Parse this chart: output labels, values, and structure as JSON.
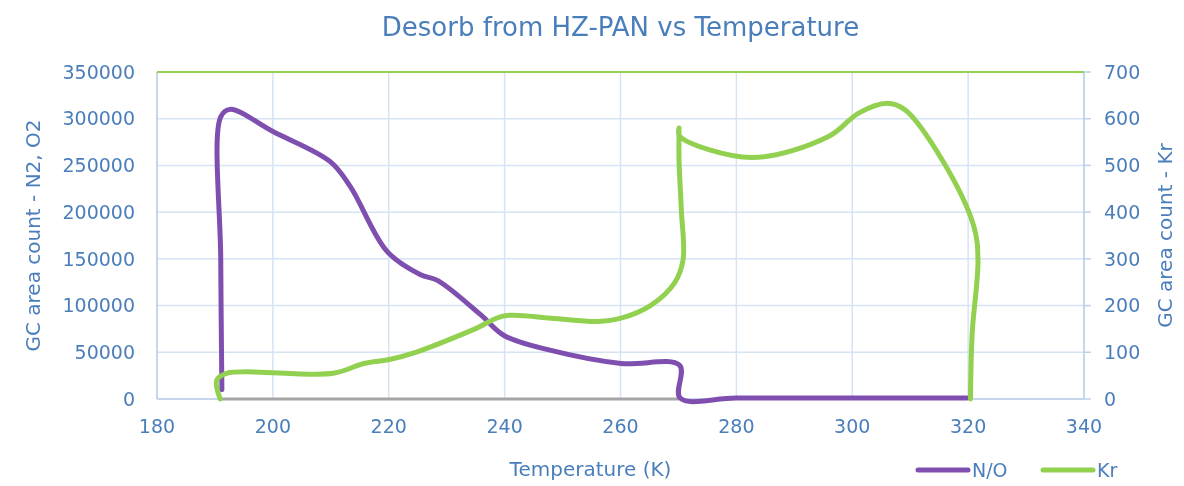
{
  "chart_data": {
    "type": "line",
    "title": "Desorb from HZ-PAN vs Temperature",
    "xlabel": "Temperature (K)",
    "ylabel": "GC area count - N2, O2",
    "y2label": "GC area count - Kr",
    "xlim": [
      180,
      340
    ],
    "xticks": [
      180,
      200,
      220,
      240,
      260,
      280,
      300,
      320,
      340
    ],
    "ylim": [
      0,
      350000
    ],
    "yticks": [
      0,
      50000,
      100000,
      150000,
      200000,
      250000,
      300000,
      350000
    ],
    "y2lim": [
      0,
      700
    ],
    "y2ticks": [
      0,
      100,
      200,
      300,
      400,
      500,
      600,
      700
    ],
    "grid": true,
    "legend": "bottom right",
    "line_style": "solid",
    "marker": "none",
    "ref_lines": [
      {
        "axis": "y2",
        "value": 700,
        "color": "#92d050"
      }
    ],
    "series": [
      {
        "color": "#a5a5a5",
        "x": [
          191,
          270
        ],
        "values": [
          0,
          0
        ]
      },
      {
        "name": "N/O",
        "color": "#7f4fb0",
        "x": [
          191.2,
          191,
          191,
          192.6,
          200.1,
          209.9,
          213.4,
          219.7,
          225.5,
          228.4,
          235.9,
          239.9,
          248,
          260.1,
          270.2,
          270.3,
          280,
          300,
          319.8
        ],
        "values": [
          10000,
          150000,
          302000,
          310000,
          286000,
          254000,
          227000,
          158000,
          133000,
          127000,
          90000,
          68000,
          52000,
          38000,
          36000,
          1000,
          1000,
          1000,
          1000
        ]
      },
      {
        "name": "Kr",
        "color": "#92d050",
        "axis": "y2",
        "x": [
          190.9,
          190.3,
          192,
          210.4,
          215.7,
          220.3,
          224.9,
          234.7,
          239.9,
          248,
          256.1,
          260.1,
          265.3,
          269.3,
          270.8,
          270.5,
          270.1,
          270.1,
          270.1,
          270.2,
          282.6,
          295.9,
          301.1,
          306,
          309.1,
          315.5,
          321,
          321.7,
          320.7,
          320.4
        ],
        "values": [
          0,
          40,
          55,
          55,
          76,
          85,
          101,
          149,
          178,
          173,
          166,
          173,
          201,
          248,
          298,
          405,
          512,
          572,
          580,
          563,
          517,
          562,
          612,
          633,
          619,
          512,
          369,
          298,
          141,
          0
        ]
      }
    ]
  }
}
